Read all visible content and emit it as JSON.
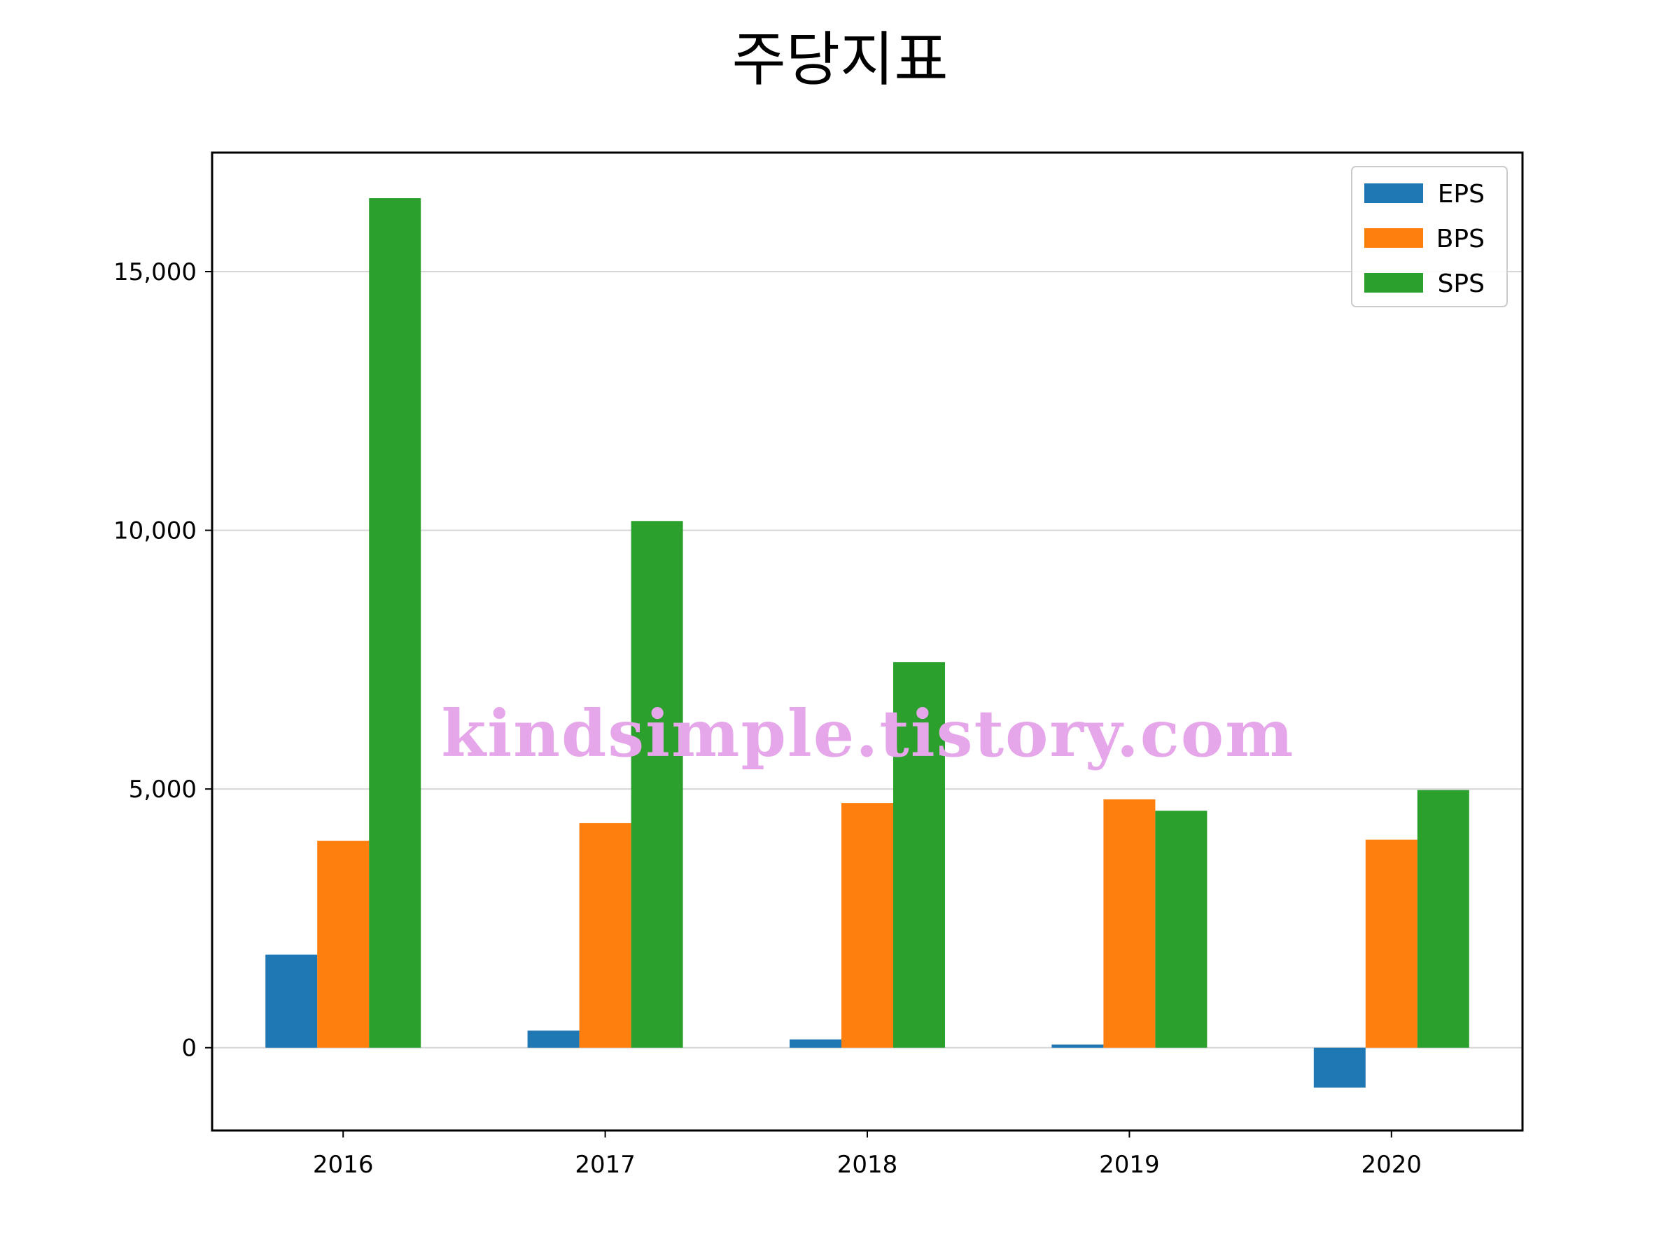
{
  "chart_data": {
    "type": "bar",
    "title": "주당지표",
    "xlabel": "",
    "ylabel": "",
    "categories": [
      "2016",
      "2017",
      "2018",
      "2019",
      "2020"
    ],
    "series": [
      {
        "name": "EPS",
        "color": "#1f77b4",
        "values": [
          1800,
          330,
          160,
          60,
          -770
        ]
      },
      {
        "name": "BPS",
        "color": "#ff7f0e",
        "values": [
          4000,
          4340,
          4730,
          4800,
          4020
        ]
      },
      {
        "name": "SPS",
        "color": "#2ca02c",
        "values": [
          16420,
          10180,
          7450,
          4580,
          4980
        ]
      }
    ],
    "ylim": [
      -1600,
      17300
    ],
    "yticks": [
      0,
      5000,
      10000,
      15000
    ],
    "ytick_labels": [
      "0",
      "5,000",
      "10,000",
      "15,000"
    ],
    "grid": "horizontal",
    "legend_position": "top-right",
    "watermark": "kindsimple.tistory.com"
  }
}
